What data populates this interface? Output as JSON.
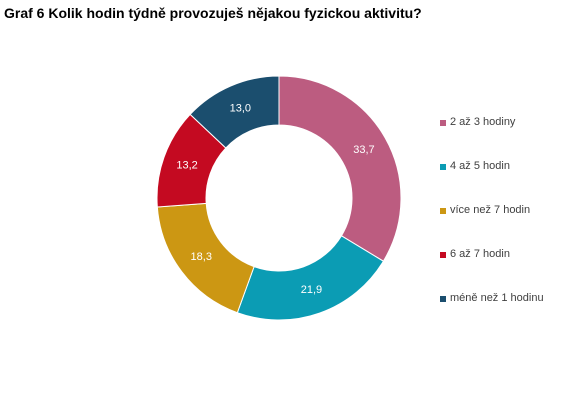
{
  "chart_data": {
    "type": "pie",
    "title": "Graf 6 Kolik hodin týdně provozuješ nějakou fyzickou aktivitu?",
    "variant": "donut",
    "legend_position": "right",
    "slices": [
      {
        "label": "2 až 3 hodiny",
        "value": 33.7,
        "value_label": "33,7",
        "color": "#BC5C80"
      },
      {
        "label": "4 až 5 hodin",
        "value": 21.9,
        "value_label": "21,9",
        "color": "#0B9CB4"
      },
      {
        "label": "více než 7 hodin",
        "value": 18.3,
        "value_label": "18,3",
        "color": "#CC9713"
      },
      {
        "label": "6 až 7 hodin",
        "value": 13.2,
        "value_label": "13,2",
        "color": "#C40A21"
      },
      {
        "label": "méně než 1 hodinu",
        "value": 13.0,
        "value_label": "13,0",
        "color": "#1B4E6E"
      }
    ]
  }
}
